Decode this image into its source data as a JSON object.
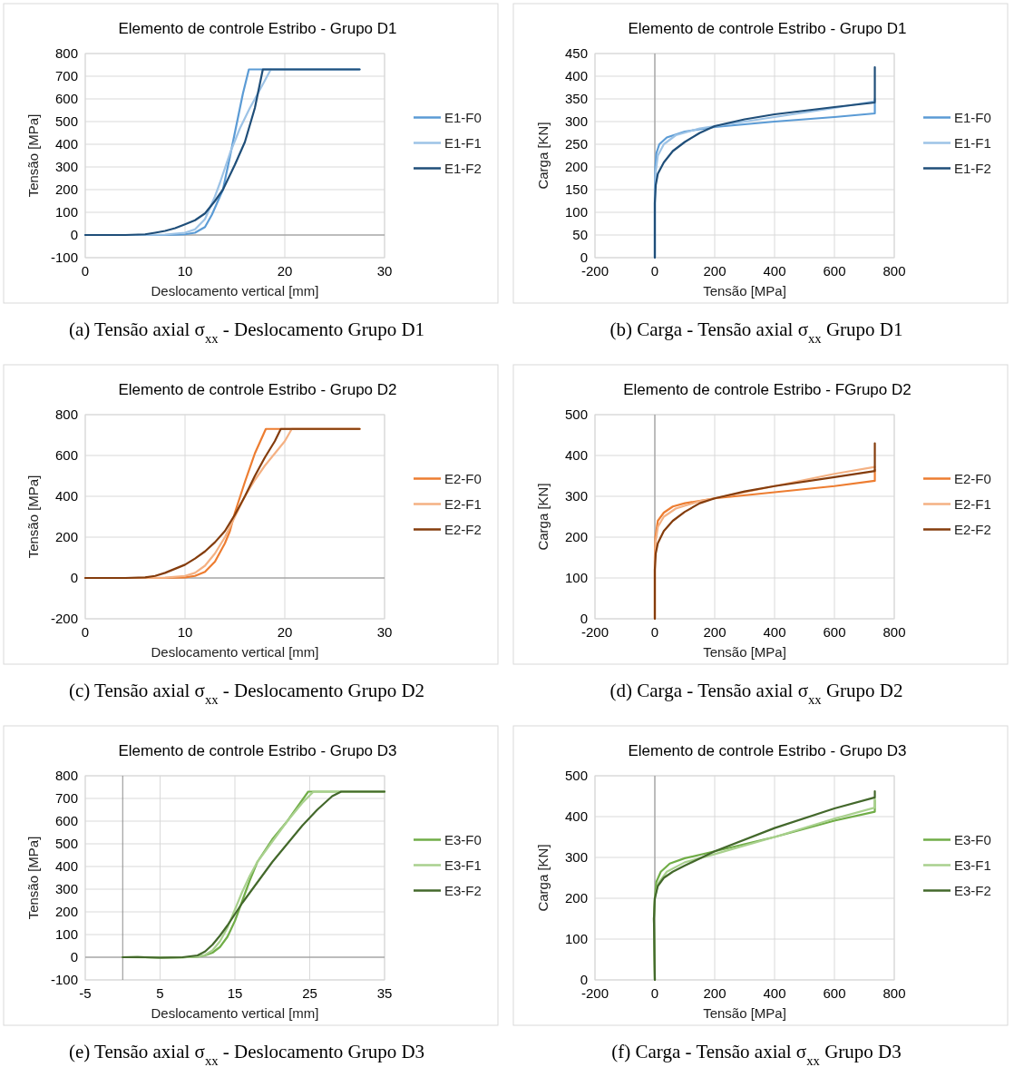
{
  "chart_data": [
    {
      "type": "line",
      "title": "Elemento de controle Estribo - Grupo D1",
      "xlabel": "Deslocamento vertical [mm]",
      "ylabel": "Tensão [MPa]",
      "xlim": [
        0,
        30
      ],
      "xticks": [
        0,
        10,
        20,
        30
      ],
      "ylim": [
        -100,
        800
      ],
      "yticks": [
        -100,
        0,
        100,
        200,
        300,
        400,
        500,
        600,
        700,
        800
      ],
      "grid": true,
      "legend": "right",
      "annotations": [
        "(a) Tensão axial σ$_{xx}$ - Deslocamento Grupo D1"
      ],
      "series": [
        {
          "name": "E1-F0",
          "color": "#5b9bd5",
          "x": [
            0,
            5,
            9,
            10,
            11,
            12,
            12.7,
            13.3,
            13.8,
            14.5,
            15.8,
            16.4,
            27.5
          ],
          "values": [
            0,
            0,
            1,
            3,
            10,
            35,
            90,
            150,
            200,
            345,
            623,
            730,
            730
          ]
        },
        {
          "name": "E1-F1",
          "color": "#9dc3e6",
          "x": [
            0,
            5,
            8,
            10,
            11,
            12,
            12.5,
            13,
            13.5,
            14.5,
            15.5,
            16.5,
            17.5,
            18.6
          ],
          "values": [
            0,
            0,
            2,
            10,
            25,
            70,
            120,
            170,
            230,
            360,
            470,
            560,
            640,
            730
          ]
        },
        {
          "name": "E1-F2",
          "color": "#1f4e79",
          "x": [
            0,
            4,
            6,
            7,
            8,
            9,
            10,
            11,
            12,
            13,
            13.8,
            15,
            16,
            17,
            17.8,
            27.5
          ],
          "values": [
            0,
            0,
            3,
            10,
            18,
            30,
            47,
            65,
            95,
            150,
            200,
            310,
            410,
            560,
            730,
            730
          ]
        }
      ]
    },
    {
      "type": "line",
      "title": "Elemento de controle Estribo - Grupo D1",
      "xlabel": "Tensão [MPa]",
      "ylabel": "Carga [KN]",
      "xlim": [
        -200,
        800
      ],
      "xticks": [
        -200,
        0,
        200,
        400,
        600,
        800
      ],
      "ylim": [
        0,
        450
      ],
      "yticks": [
        0,
        50,
        100,
        150,
        200,
        250,
        300,
        350,
        400,
        450
      ],
      "grid": true,
      "legend": "right",
      "annotations": [
        "(b) Carga - Tensão axial σ$_{xx}$ Grupo D1"
      ],
      "series": [
        {
          "name": "E1-F0",
          "color": "#5b9bd5",
          "x": [
            0,
            0,
            2,
            5,
            15,
            40,
            100,
            200,
            400,
            600,
            735,
            735
          ],
          "values": [
            0,
            150,
            200,
            230,
            250,
            265,
            278,
            288,
            300,
            310,
            318,
            340
          ]
        },
        {
          "name": "E1-F1",
          "color": "#9dc3e6",
          "x": [
            0,
            0,
            3,
            10,
            30,
            70,
            150,
            200,
            400,
            600,
            735,
            735
          ],
          "values": [
            0,
            130,
            190,
            225,
            250,
            270,
            285,
            290,
            310,
            330,
            345,
            350
          ]
        },
        {
          "name": "E1-F2",
          "color": "#1f4e79",
          "x": [
            0,
            0,
            3,
            10,
            30,
            60,
            100,
            150,
            200,
            300,
            400,
            600,
            735,
            735
          ],
          "values": [
            0,
            120,
            160,
            185,
            210,
            235,
            255,
            275,
            290,
            305,
            316,
            332,
            342,
            420
          ]
        }
      ]
    },
    {
      "type": "line",
      "title": "Elemento de controle Estribo - Grupo D2",
      "xlabel": "Deslocamento vertical [mm]",
      "ylabel": "Tensão [MPa]",
      "xlim": [
        0,
        30
      ],
      "xticks": [
        0,
        10,
        20,
        30
      ],
      "ylim": [
        -200,
        800
      ],
      "yticks": [
        -200,
        0,
        200,
        400,
        600,
        800
      ],
      "grid": true,
      "legend": "right",
      "annotations": [
        "(c) Tensão axial σ$_{xx}$ - Deslocamento Grupo D2"
      ],
      "series": [
        {
          "name": "E2-F0",
          "color": "#ed7d31",
          "x": [
            0,
            5,
            9,
            10,
            11,
            12,
            13,
            14,
            14.5,
            15,
            16,
            17,
            18.1,
            27.5
          ],
          "values": [
            0,
            0,
            1,
            3,
            10,
            30,
            80,
            170,
            230,
            320,
            470,
            610,
            730,
            730
          ]
        },
        {
          "name": "E2-F1",
          "color": "#f4b183",
          "x": [
            0,
            5,
            8,
            10,
            11,
            12,
            13,
            14,
            15,
            16,
            17,
            18,
            19,
            20,
            20.7,
            27.5
          ],
          "values": [
            0,
            0,
            2,
            10,
            25,
            60,
            120,
            200,
            300,
            400,
            480,
            550,
            610,
            670,
            730,
            730
          ]
        },
        {
          "name": "E2-F2",
          "color": "#843c0c",
          "x": [
            0,
            4,
            6,
            7,
            8,
            9,
            10,
            11,
            12,
            13,
            14,
            15,
            16,
            17,
            18,
            19,
            19.6,
            27.5
          ],
          "values": [
            0,
            0,
            3,
            10,
            25,
            45,
            65,
            95,
            130,
            175,
            230,
            310,
            400,
            500,
            590,
            670,
            730,
            730
          ]
        }
      ]
    },
    {
      "type": "line",
      "title": "Elemento de controle Estribo - FGrupo D2",
      "xlabel": "Tensão [MPa]",
      "ylabel": "Carga [KN]",
      "xlim": [
        -200,
        800
      ],
      "xticks": [
        -200,
        0,
        200,
        400,
        600,
        800
      ],
      "ylim": [
        0,
        500
      ],
      "yticks": [
        0,
        100,
        200,
        300,
        400,
        500
      ],
      "grid": true,
      "legend": "right",
      "annotations": [
        "(d) Carga - Tensão axial σ$_{xx}$ Grupo D2"
      ],
      "series": [
        {
          "name": "E2-F0",
          "color": "#ed7d31",
          "x": [
            0,
            0,
            2,
            10,
            30,
            60,
            100,
            200,
            400,
            600,
            735,
            735
          ],
          "values": [
            0,
            150,
            200,
            240,
            260,
            275,
            283,
            295,
            310,
            325,
            338,
            365
          ]
        },
        {
          "name": "E2-F1",
          "color": "#f4b183",
          "x": [
            0,
            0,
            3,
            10,
            30,
            70,
            150,
            200,
            400,
            600,
            735
          ],
          "values": [
            0,
            140,
            190,
            225,
            250,
            270,
            288,
            295,
            325,
            355,
            372
          ]
        },
        {
          "name": "E2-F2",
          "color": "#843c0c",
          "x": [
            0,
            0,
            3,
            10,
            30,
            60,
            100,
            150,
            200,
            300,
            400,
            600,
            735,
            735
          ],
          "values": [
            0,
            120,
            160,
            185,
            215,
            240,
            262,
            283,
            295,
            312,
            325,
            347,
            362,
            430
          ]
        }
      ]
    },
    {
      "type": "line",
      "title": "Elemento de controle Estribo - Grupo D3",
      "xlabel": "Deslocamento vertical [mm]",
      "ylabel": "Tensão [MPa]",
      "xlim": [
        -5,
        35
      ],
      "xticks": [
        -5,
        5,
        15,
        25,
        35
      ],
      "ylim": [
        -100,
        800
      ],
      "yticks": [
        -100,
        0,
        100,
        200,
        300,
        400,
        500,
        600,
        700,
        800
      ],
      "grid": true,
      "legend": "right",
      "annotations": [
        "(e) Tensão axial σ$_{xx}$ - Deslocamento Grupo D3"
      ],
      "series": [
        {
          "name": "E3-F0",
          "color": "#70ad47",
          "x": [
            0,
            2,
            5,
            8,
            10,
            11,
            12,
            13,
            14,
            15,
            16,
            17,
            18,
            20,
            22,
            24.8,
            35
          ],
          "values": [
            0,
            1,
            -2,
            -1,
            2,
            8,
            20,
            45,
            90,
            160,
            250,
            340,
            420,
            520,
            600,
            730,
            730
          ]
        },
        {
          "name": "E3-F1",
          "color": "#a9d18e",
          "x": [
            0,
            5,
            8,
            10,
            11,
            12,
            13,
            14,
            15,
            16,
            17,
            18,
            20,
            22,
            24,
            25.5,
            35
          ],
          "values": [
            0,
            -2,
            -1,
            3,
            10,
            30,
            70,
            130,
            210,
            290,
            360,
            420,
            510,
            600,
            680,
            730,
            730
          ]
        },
        {
          "name": "E3-F2",
          "color": "#43682b",
          "x": [
            0,
            2,
            5,
            8,
            10,
            11,
            12,
            13,
            14,
            15,
            16,
            18,
            20,
            22,
            24,
            26,
            28,
            29.2,
            35
          ],
          "values": [
            0,
            1,
            -2,
            0,
            8,
            25,
            55,
            95,
            140,
            190,
            240,
            330,
            420,
            500,
            580,
            650,
            710,
            730,
            730
          ]
        }
      ]
    },
    {
      "type": "line",
      "title": "Elemento de controle Estribo - Grupo D3",
      "xlabel": "Tensão [MPa]",
      "ylabel": "Carga [KN]",
      "xlim": [
        -200,
        800
      ],
      "xticks": [
        -200,
        0,
        200,
        400,
        600,
        800
      ],
      "ylim": [
        0,
        500
      ],
      "yticks": [
        0,
        100,
        200,
        300,
        400,
        500
      ],
      "grid": true,
      "legend": "right",
      "annotations": [
        "(f) Carga - Tensão axial σ$_{xx}$ Grupo D3"
      ],
      "series": [
        {
          "name": "E3-F0",
          "color": "#70ad47",
          "x": [
            0,
            -2,
            -3,
            0,
            5,
            20,
            50,
            100,
            200,
            400,
            600,
            735,
            735
          ],
          "values": [
            0,
            100,
            150,
            200,
            240,
            265,
            285,
            298,
            315,
            350,
            390,
            412,
            440
          ]
        },
        {
          "name": "E3-F1",
          "color": "#a9d18e",
          "x": [
            0,
            -2,
            -3,
            0,
            10,
            40,
            100,
            200,
            400,
            600,
            735,
            735
          ],
          "values": [
            0,
            100,
            150,
            200,
            235,
            265,
            288,
            308,
            350,
            395,
            422,
            445
          ]
        },
        {
          "name": "E3-F2",
          "color": "#43682b",
          "x": [
            0,
            -2,
            -3,
            0,
            10,
            30,
            60,
            100,
            200,
            400,
            600,
            735,
            735
          ],
          "values": [
            0,
            100,
            150,
            200,
            230,
            250,
            265,
            280,
            315,
            372,
            420,
            447,
            462
          ]
        }
      ]
    }
  ]
}
